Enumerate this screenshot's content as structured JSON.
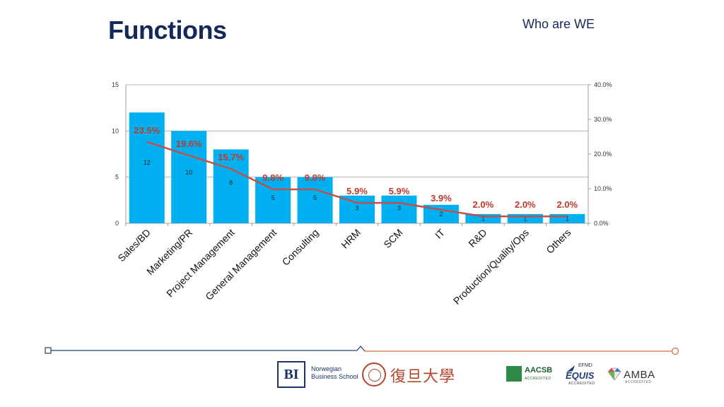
{
  "header": {
    "title": "Functions",
    "subtitle": "Who are WE"
  },
  "chart_data": {
    "type": "bar",
    "categories": [
      "Sales/BD",
      "Marketing/PR",
      "Project Management",
      "General Management",
      "Consulting",
      "HRM",
      "SCM",
      "IT",
      "R&D",
      "Production/Quality/Ops",
      "Others"
    ],
    "series": [
      {
        "values": [
          12,
          10,
          8,
          5,
          5,
          3,
          3,
          2,
          1,
          1,
          1
        ],
        "color": "#00b0f0",
        "axis": "left"
      },
      {
        "type": "line",
        "values": [
          23.5,
          19.6,
          15.7,
          9.8,
          9.8,
          5.9,
          5.9,
          3.9,
          2.0,
          2.0,
          2.0
        ],
        "color": "#c0504d",
        "axis": "right"
      }
    ],
    "bar_labels": [
      "12",
      "10",
      "8",
      "5",
      "5",
      "3",
      "3",
      "2",
      "1",
      "1",
      "1"
    ],
    "line_labels": [
      "23.5%",
      "19.6%",
      "15.7%",
      "9.8%",
      "9.8%",
      "5.9%",
      "5.9%",
      "3.9%",
      "2.0%",
      "2.0%",
      "2.0%"
    ],
    "y_left": {
      "ylim": [
        0,
        15
      ],
      "ticks": [
        "0",
        "5",
        "10",
        "15"
      ]
    },
    "y_right": {
      "ylim": [
        0,
        40
      ],
      "ticks": [
        "0.0%",
        "10.0%",
        "20.0%",
        "30.0%",
        "40.0%"
      ]
    },
    "grid": true,
    "legend": "none"
  },
  "footer": {
    "logos": {
      "bi_mark": "BI",
      "bi_line1": "Norwegian",
      "bi_line2": "Business School",
      "fudan": "復旦大學",
      "aacsb": "AACSB",
      "aacsb_sub": "ACCREDITED",
      "efmd": "EFMD",
      "equis": "EQUIS",
      "equis_sub": "ACCREDITED",
      "amba": "AMBA",
      "amba_sub": "ACCREDITED"
    },
    "colors": {
      "left_line": "#1f3f73",
      "right_line": "#d2693c"
    }
  }
}
